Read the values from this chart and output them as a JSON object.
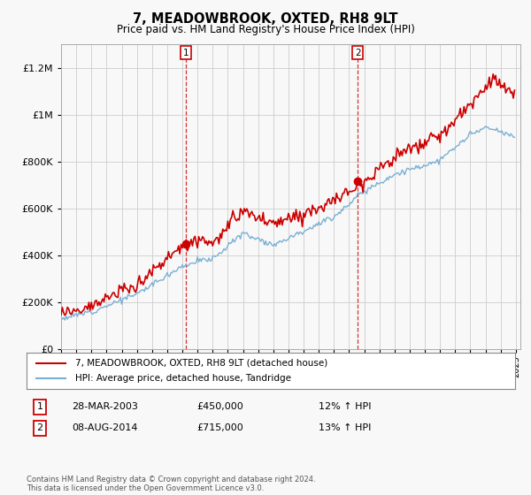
{
  "title": "7, MEADOWBROOK, OXTED, RH8 9LT",
  "subtitle": "Price paid vs. HM Land Registry's House Price Index (HPI)",
  "property_label": "7, MEADOWBROOK, OXTED, RH8 9LT (detached house)",
  "hpi_label": "HPI: Average price, detached house, Tandridge",
  "transaction1": {
    "label": "1",
    "date": "28-MAR-2003",
    "price": "£450,000",
    "hpi": "12% ↑ HPI"
  },
  "transaction2": {
    "label": "2",
    "date": "08-AUG-2014",
    "price": "£715,000",
    "hpi": "13% ↑ HPI"
  },
  "footnote": "Contains HM Land Registry data © Crown copyright and database right 2024.\nThis data is licensed under the Open Government Licence v3.0.",
  "red_color": "#cc0000",
  "blue_color": "#7ab0d4",
  "vline_color": "#cc0000",
  "background_color": "#f8f8f8",
  "grid_color": "#cccccc",
  "ylim": [
    0,
    1300000
  ],
  "yticks": [
    0,
    200000,
    400000,
    600000,
    800000,
    1000000,
    1200000
  ],
  "transaction1_year": 2003.22,
  "transaction2_year": 2014.58
}
